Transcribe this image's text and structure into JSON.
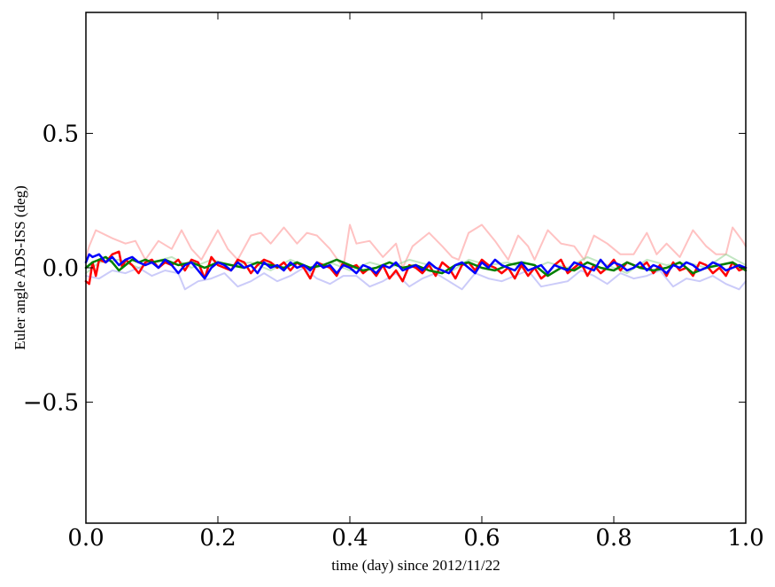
{
  "chart_data": {
    "type": "line",
    "title": "",
    "xlabel": "time (day) since 2012/11/22",
    "ylabel": "Euler angle ADS-ISS (deg)",
    "xlim": [
      0.0,
      1.0
    ],
    "ylim": [
      -0.95,
      0.95
    ],
    "xticks": [
      0.0,
      0.2,
      0.4,
      0.6,
      0.8,
      1.0
    ],
    "xtick_labels": [
      "0.0",
      "0.2",
      "0.4",
      "0.6",
      "0.8",
      "1.0"
    ],
    "yticks": [
      0.5,
      0.0,
      -0.5
    ],
    "ytick_labels": [
      "0.5",
      "0.0",
      "−0.5"
    ],
    "grid": false,
    "series": [
      {
        "name": "light-red",
        "color": "#ff9a9a",
        "opacity": 0.6,
        "width": 2,
        "x": [
          0.0,
          0.005,
          0.015,
          0.04,
          0.06,
          0.075,
          0.09,
          0.11,
          0.13,
          0.145,
          0.16,
          0.175,
          0.2,
          0.215,
          0.23,
          0.25,
          0.265,
          0.28,
          0.3,
          0.32,
          0.335,
          0.35,
          0.37,
          0.39,
          0.4,
          0.41,
          0.43,
          0.45,
          0.47,
          0.48,
          0.495,
          0.52,
          0.54,
          0.555,
          0.565,
          0.58,
          0.6,
          0.62,
          0.64,
          0.655,
          0.67,
          0.68,
          0.7,
          0.72,
          0.74,
          0.755,
          0.77,
          0.79,
          0.81,
          0.83,
          0.85,
          0.865,
          0.88,
          0.9,
          0.92,
          0.94,
          0.955,
          0.97,
          0.98,
          0.995,
          1.0
        ],
        "y": [
          0.04,
          0.08,
          0.14,
          0.11,
          0.09,
          0.1,
          0.03,
          0.1,
          0.07,
          0.14,
          0.07,
          0.03,
          0.14,
          0.07,
          0.03,
          0.12,
          0.13,
          0.09,
          0.15,
          0.09,
          0.13,
          0.12,
          0.07,
          0.0,
          0.16,
          0.09,
          0.1,
          0.04,
          0.09,
          0.0,
          0.08,
          0.13,
          0.08,
          0.04,
          0.03,
          0.13,
          0.16,
          0.1,
          0.03,
          0.12,
          0.08,
          0.03,
          0.14,
          0.09,
          0.08,
          0.03,
          0.12,
          0.09,
          0.05,
          0.05,
          0.13,
          0.05,
          0.09,
          0.04,
          0.14,
          0.08,
          0.05,
          0.05,
          0.15,
          0.1,
          0.08
        ]
      },
      {
        "name": "light-green",
        "color": "#8fd18f",
        "opacity": 0.55,
        "width": 2,
        "x": [
          0.0,
          0.02,
          0.05,
          0.08,
          0.1,
          0.13,
          0.16,
          0.19,
          0.22,
          0.25,
          0.28,
          0.31,
          0.34,
          0.37,
          0.4,
          0.43,
          0.46,
          0.49,
          0.52,
          0.55,
          0.58,
          0.61,
          0.64,
          0.67,
          0.7,
          0.73,
          0.76,
          0.79,
          0.82,
          0.85,
          0.88,
          0.91,
          0.94,
          0.97,
          1.0
        ],
        "y": [
          -0.02,
          0.02,
          0.03,
          0.0,
          0.02,
          0.04,
          0.0,
          0.03,
          0.01,
          0.02,
          -0.01,
          0.03,
          0.0,
          0.02,
          -0.01,
          0.02,
          0.0,
          0.03,
          0.01,
          -0.02,
          0.03,
          0.01,
          0.02,
          -0.01,
          0.02,
          0.0,
          0.04,
          0.01,
          -0.02,
          0.03,
          0.01,
          0.02,
          0.0,
          0.05,
          0.01
        ]
      },
      {
        "name": "light-blue",
        "color": "#a9a9f5",
        "opacity": 0.6,
        "width": 2,
        "x": [
          0.0,
          0.02,
          0.04,
          0.06,
          0.08,
          0.1,
          0.12,
          0.14,
          0.15,
          0.17,
          0.19,
          0.21,
          0.23,
          0.25,
          0.27,
          0.29,
          0.31,
          0.33,
          0.35,
          0.37,
          0.39,
          0.41,
          0.43,
          0.45,
          0.47,
          0.49,
          0.51,
          0.53,
          0.55,
          0.57,
          0.59,
          0.61,
          0.63,
          0.65,
          0.67,
          0.69,
          0.71,
          0.73,
          0.75,
          0.77,
          0.79,
          0.81,
          0.83,
          0.85,
          0.87,
          0.89,
          0.91,
          0.93,
          0.95,
          0.97,
          0.99,
          1.0
        ],
        "y": [
          -0.03,
          -0.04,
          -0.01,
          -0.02,
          0.0,
          -0.03,
          -0.01,
          -0.02,
          -0.08,
          -0.05,
          -0.04,
          -0.02,
          -0.07,
          -0.05,
          -0.02,
          -0.05,
          -0.03,
          0.0,
          -0.04,
          -0.06,
          -0.03,
          -0.03,
          -0.07,
          -0.05,
          -0.02,
          -0.07,
          -0.04,
          -0.02,
          -0.05,
          -0.08,
          -0.02,
          -0.04,
          -0.05,
          -0.03,
          -0.01,
          -0.07,
          -0.06,
          -0.05,
          -0.01,
          -0.03,
          -0.06,
          -0.02,
          -0.04,
          -0.03,
          -0.01,
          -0.07,
          -0.04,
          -0.05,
          -0.03,
          -0.06,
          -0.08,
          -0.05
        ]
      },
      {
        "name": "red",
        "color": "#ff0000",
        "opacity": 1,
        "width": 2.5,
        "x": [
          0.0,
          0.005,
          0.01,
          0.015,
          0.02,
          0.03,
          0.04,
          0.05,
          0.055,
          0.06,
          0.07,
          0.08,
          0.09,
          0.1,
          0.11,
          0.12,
          0.13,
          0.14,
          0.15,
          0.16,
          0.17,
          0.18,
          0.19,
          0.2,
          0.21,
          0.22,
          0.23,
          0.24,
          0.25,
          0.26,
          0.27,
          0.28,
          0.29,
          0.3,
          0.31,
          0.32,
          0.33,
          0.34,
          0.35,
          0.36,
          0.37,
          0.38,
          0.39,
          0.4,
          0.41,
          0.42,
          0.43,
          0.44,
          0.45,
          0.46,
          0.47,
          0.48,
          0.49,
          0.5,
          0.51,
          0.52,
          0.53,
          0.54,
          0.55,
          0.56,
          0.57,
          0.58,
          0.59,
          0.6,
          0.61,
          0.62,
          0.63,
          0.64,
          0.65,
          0.66,
          0.67,
          0.68,
          0.69,
          0.7,
          0.71,
          0.72,
          0.73,
          0.74,
          0.75,
          0.76,
          0.77,
          0.78,
          0.79,
          0.8,
          0.81,
          0.82,
          0.83,
          0.84,
          0.85,
          0.86,
          0.87,
          0.88,
          0.89,
          0.9,
          0.91,
          0.92,
          0.93,
          0.94,
          0.95,
          0.96,
          0.97,
          0.98,
          0.99,
          1.0
        ],
        "y": [
          -0.05,
          -0.06,
          0.02,
          -0.03,
          0.03,
          0.02,
          0.05,
          0.06,
          0.0,
          0.03,
          0.01,
          -0.02,
          0.02,
          0.03,
          0.0,
          0.02,
          0.01,
          0.03,
          -0.01,
          0.03,
          0.02,
          -0.04,
          0.04,
          0.01,
          0.0,
          -0.01,
          0.03,
          0.02,
          -0.02,
          0.01,
          0.03,
          0.02,
          0.0,
          0.02,
          -0.01,
          0.02,
          0.0,
          -0.04,
          0.02,
          0.01,
          0.0,
          -0.03,
          0.02,
          0.0,
          0.01,
          -0.02,
          0.0,
          -0.03,
          0.01,
          -0.04,
          -0.01,
          -0.05,
          0.01,
          0.0,
          -0.02,
          0.01,
          -0.03,
          0.02,
          0.0,
          -0.04,
          0.01,
          0.02,
          -0.01,
          0.03,
          0.01,
          0.0,
          -0.02,
          0.0,
          -0.04,
          0.01,
          -0.03,
          0.0,
          -0.04,
          -0.02,
          0.01,
          0.03,
          -0.02,
          0.0,
          0.02,
          -0.03,
          0.01,
          -0.02,
          0.0,
          0.03,
          -0.01,
          0.02,
          0.01,
          0.0,
          0.02,
          -0.02,
          0.01,
          -0.03,
          0.02,
          -0.01,
          0.0,
          -0.03,
          0.02,
          0.01,
          -0.02,
          0.0,
          -0.03,
          0.02,
          -0.01,
          0.0
        ]
      },
      {
        "name": "green",
        "color": "#007f00",
        "opacity": 1,
        "width": 2.5,
        "x": [
          0.0,
          0.01,
          0.02,
          0.03,
          0.04,
          0.05,
          0.06,
          0.07,
          0.08,
          0.09,
          0.1,
          0.12,
          0.14,
          0.16,
          0.18,
          0.2,
          0.22,
          0.24,
          0.26,
          0.28,
          0.3,
          0.32,
          0.34,
          0.36,
          0.38,
          0.4,
          0.42,
          0.44,
          0.46,
          0.48,
          0.5,
          0.52,
          0.54,
          0.56,
          0.58,
          0.6,
          0.62,
          0.64,
          0.66,
          0.68,
          0.7,
          0.72,
          0.74,
          0.76,
          0.78,
          0.8,
          0.82,
          0.84,
          0.86,
          0.88,
          0.9,
          0.92,
          0.94,
          0.96,
          0.98,
          1.0
        ],
        "y": [
          0.0,
          0.02,
          0.03,
          0.04,
          0.02,
          -0.01,
          0.01,
          0.03,
          0.02,
          0.03,
          0.02,
          0.03,
          0.01,
          0.02,
          0.0,
          0.02,
          0.01,
          0.0,
          0.02,
          0.01,
          0.0,
          0.02,
          0.0,
          0.01,
          0.03,
          0.01,
          -0.01,
          0.0,
          0.02,
          0.0,
          0.01,
          -0.01,
          -0.02,
          0.01,
          0.02,
          0.0,
          -0.01,
          0.01,
          0.02,
          0.01,
          -0.03,
          0.0,
          -0.01,
          0.02,
          0.0,
          -0.01,
          0.02,
          0.0,
          -0.01,
          0.0,
          0.02,
          -0.02,
          0.0,
          0.01,
          0.02,
          -0.01
        ]
      },
      {
        "name": "blue",
        "color": "#0000ff",
        "opacity": 1,
        "width": 2.5,
        "x": [
          0.0,
          0.005,
          0.01,
          0.02,
          0.03,
          0.04,
          0.05,
          0.06,
          0.07,
          0.08,
          0.09,
          0.1,
          0.11,
          0.12,
          0.13,
          0.14,
          0.15,
          0.16,
          0.17,
          0.18,
          0.19,
          0.2,
          0.21,
          0.22,
          0.23,
          0.24,
          0.25,
          0.26,
          0.27,
          0.28,
          0.29,
          0.3,
          0.31,
          0.32,
          0.33,
          0.34,
          0.35,
          0.36,
          0.37,
          0.38,
          0.39,
          0.4,
          0.41,
          0.42,
          0.43,
          0.44,
          0.45,
          0.46,
          0.47,
          0.48,
          0.49,
          0.5,
          0.51,
          0.52,
          0.53,
          0.54,
          0.55,
          0.56,
          0.57,
          0.58,
          0.59,
          0.6,
          0.61,
          0.62,
          0.63,
          0.64,
          0.65,
          0.66,
          0.67,
          0.68,
          0.69,
          0.7,
          0.71,
          0.72,
          0.73,
          0.74,
          0.75,
          0.76,
          0.77,
          0.78,
          0.79,
          0.8,
          0.81,
          0.82,
          0.83,
          0.84,
          0.85,
          0.86,
          0.87,
          0.88,
          0.89,
          0.9,
          0.91,
          0.92,
          0.93,
          0.94,
          0.95,
          0.96,
          0.97,
          0.98,
          0.99,
          1.0
        ],
        "y": [
          0.02,
          0.05,
          0.04,
          0.05,
          0.02,
          0.04,
          0.01,
          0.03,
          0.04,
          0.02,
          0.01,
          0.02,
          0.0,
          0.03,
          0.01,
          -0.02,
          0.01,
          0.02,
          -0.01,
          -0.04,
          0.0,
          0.02,
          0.01,
          -0.01,
          0.02,
          0.0,
          0.01,
          -0.02,
          0.02,
          0.0,
          0.01,
          -0.01,
          0.02,
          0.0,
          0.01,
          -0.01,
          0.02,
          0.0,
          0.01,
          -0.02,
          0.01,
          0.0,
          -0.02,
          0.01,
          0.0,
          -0.02,
          0.01,
          0.0,
          0.02,
          -0.01,
          0.0,
          0.01,
          -0.01,
          0.02,
          0.0,
          -0.01,
          -0.02,
          0.01,
          0.02,
          0.0,
          -0.02,
          0.02,
          0.0,
          0.03,
          0.01,
          0.0,
          -0.01,
          0.02,
          -0.01,
          0.0,
          0.01,
          -0.02,
          0.01,
          0.0,
          -0.01,
          0.02,
          0.01,
          0.0,
          -0.01,
          0.03,
          0.0,
          0.02,
          0.01,
          -0.01,
          0.0,
          0.02,
          -0.01,
          0.01,
          0.0,
          -0.02,
          0.01,
          0.0,
          0.02,
          0.01,
          -0.01,
          0.0,
          0.02,
          0.01,
          -0.01,
          0.0,
          0.01,
          0.0
        ]
      }
    ]
  }
}
